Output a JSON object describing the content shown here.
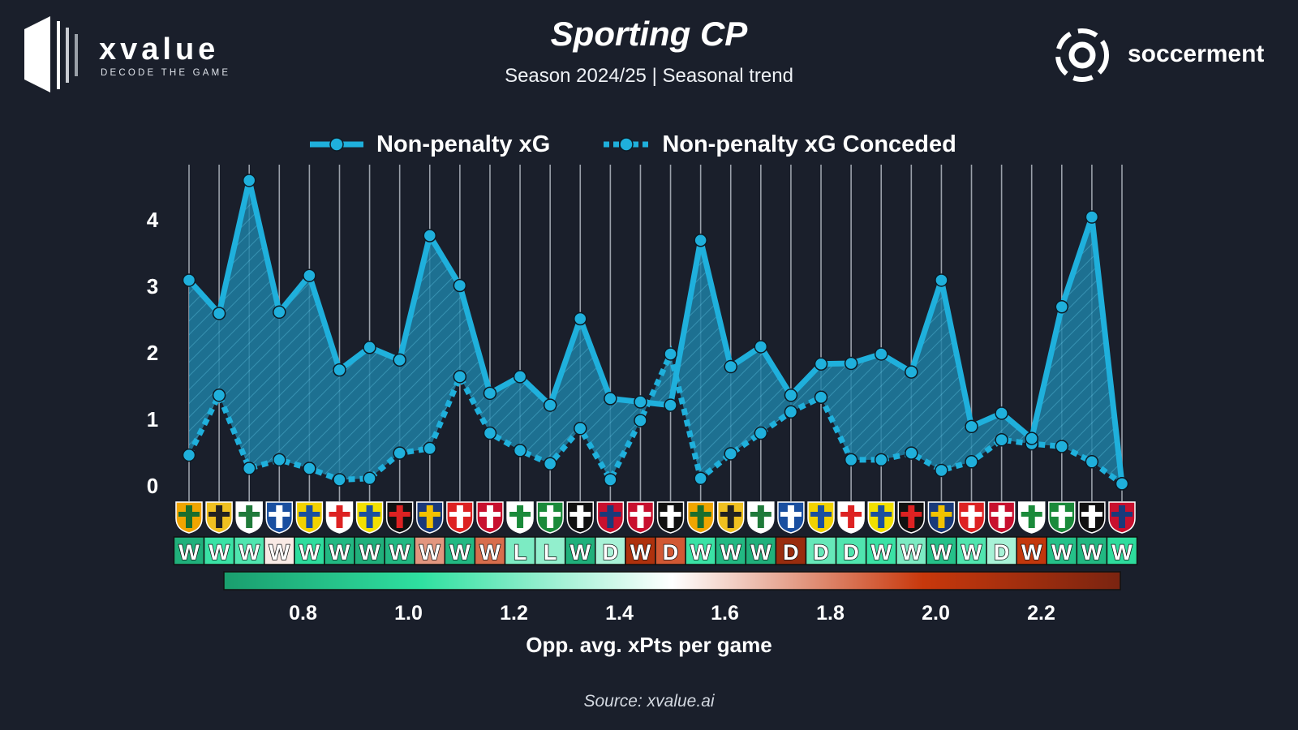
{
  "header": {
    "title": "Sporting CP",
    "subtitle": "Season 2024/25 | Seasonal trend"
  },
  "brand_left": {
    "name": "xvalue",
    "tagline": "DECODE THE GAME",
    "logo_icon": "xvalue-logo-icon"
  },
  "brand_right": {
    "name": "soccerment",
    "logo_icon": "soccerment-logo-icon"
  },
  "legend": {
    "series_1": "Non-penalty xG",
    "series_2": "Non-penalty xG Conceded"
  },
  "colors": {
    "background": "#1a1f2b",
    "line": "#1fb0dc",
    "fill": "#1e7ea3",
    "colorbar_low": "#1a9e6e",
    "colorbar_mid_low": "#2fe0a0",
    "colorbar_mid": "#ffffff",
    "colorbar_high": "#c8380c",
    "colorbar_top": "#7a2410"
  },
  "chart_data": {
    "type": "line",
    "ylim": [
      0,
      4.7
    ],
    "yticks": [
      "0",
      "1",
      "2",
      "3",
      "4"
    ],
    "series": [
      {
        "name": "Non-penalty xG",
        "style": "solid",
        "values": [
          3.08,
          2.58,
          4.58,
          2.6,
          3.15,
          1.73,
          2.07,
          1.88,
          3.75,
          3.0,
          1.38,
          1.63,
          1.2,
          2.5,
          1.3,
          1.25,
          1.2,
          3.68,
          1.78,
          2.08,
          1.35,
          1.82,
          1.83,
          1.97,
          1.7,
          3.08,
          0.88,
          1.08,
          0.7,
          2.68,
          4.03,
          0.02
        ]
      },
      {
        "name": "Non-penalty xG Conceded",
        "style": "dotted",
        "values": [
          0.45,
          1.35,
          0.25,
          0.38,
          0.25,
          0.08,
          0.1,
          0.48,
          0.55,
          1.63,
          0.78,
          0.52,
          0.32,
          0.85,
          0.08,
          0.97,
          1.97,
          0.1,
          0.47,
          0.78,
          1.1,
          1.32,
          0.38,
          0.38,
          0.48,
          0.22,
          0.35,
          0.68,
          0.62,
          0.58,
          0.35,
          0.02
        ]
      }
    ],
    "results": [
      "W",
      "W",
      "W",
      "W",
      "W",
      "W",
      "W",
      "W",
      "W",
      "W",
      "W",
      "L",
      "L",
      "W",
      "D",
      "W",
      "D",
      "W",
      "W",
      "W",
      "D",
      "D",
      "D",
      "W",
      "W",
      "W",
      "W",
      "D",
      "W",
      "W",
      "W",
      "W"
    ],
    "result_opp_xpts": [
      0.75,
      1.05,
      1.1,
      1.55,
      1.0,
      0.8,
      0.75,
      0.8,
      1.75,
      0.8,
      1.85,
      1.2,
      1.25,
      0.75,
      1.3,
      2.1,
      1.9,
      1.05,
      0.8,
      0.75,
      2.2,
      1.15,
      1.1,
      1.05,
      1.2,
      0.85,
      1.1,
      1.3,
      2.0,
      0.85,
      0.8,
      1.0
    ],
    "opponent_icons": [
      "rio-ave-crest-icon",
      "nacional-crest-icon",
      "sc-farense-crest-icon",
      "porto-crest-icon",
      "arouca-crest-icon",
      "afs-crest-icon",
      "estoril-crest-icon",
      "casa-pia-crest-icon",
      "famalicao-crest-icon",
      "santa-clara-crest-icon",
      "braga-crest-icon",
      "santa-clara-crest-icon",
      "moreirense-crest-icon",
      "boavista-crest-icon",
      "gil-vicente-crest-icon",
      "benfica-crest-icon",
      "vitoria-crest-icon",
      "rio-ave-crest-icon",
      "nacional-crest-icon",
      "sc-farense-crest-icon",
      "porto-crest-icon",
      "arouca-crest-icon",
      "afs-crest-icon",
      "estoril-crest-icon",
      "casa-pia-crest-icon",
      "famalicao-crest-icon",
      "santa-clara-crest-icon",
      "braga-crest-icon",
      "santa-clara-crest-icon",
      "moreirense-crest-icon",
      "boavista-crest-icon",
      "gil-vicente-crest-icon"
    ],
    "colorbar": {
      "label": "Opp. avg. xPts per game",
      "range": [
        0.65,
        2.35
      ],
      "ticks": [
        "0.8",
        "1.0",
        "1.2",
        "1.4",
        "1.6",
        "1.8",
        "2.0",
        "2.2"
      ]
    }
  },
  "footer": {
    "source": "Source: xvalue.ai"
  }
}
